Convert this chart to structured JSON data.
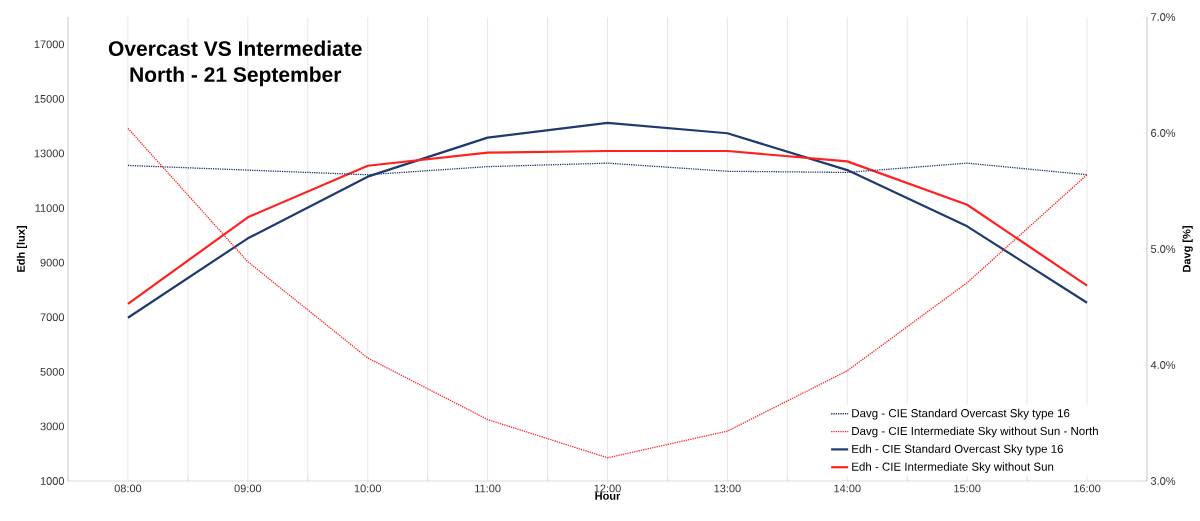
{
  "chart_data": {
    "type": "line",
    "title": "Overcast VS Intermediate",
    "subtitle": "North - 21 September",
    "xlabel": "Hour",
    "ylabel": "Edh [lux]",
    "y2label": "Davg [%]",
    "categories": [
      "08:00",
      "09:00",
      "10:00",
      "11:00",
      "12:00",
      "13:00",
      "14:00",
      "15:00",
      "16:00"
    ],
    "ylim": [
      1000,
      18000
    ],
    "yticks": [
      1000,
      3000,
      5000,
      7000,
      9000,
      11000,
      13000,
      15000,
      17000
    ],
    "y2lim": [
      3,
      7
    ],
    "y2ticks": [
      {
        "value": 3,
        "label": "3.0%"
      },
      {
        "value": 4,
        "label": "4.0%"
      },
      {
        "value": 5,
        "label": "5.0%"
      },
      {
        "value": 6,
        "label": "6.0%"
      },
      {
        "value": 7,
        "label": "7.0%"
      }
    ],
    "grid": "x",
    "legend": "bottom right",
    "marker": "none",
    "series": [
      {
        "name": "Davg - CIE Standard Overcast Sky type 16",
        "color": "#1f3a6e",
        "axis": "y2",
        "line_style": "dotted",
        "values": [
          5.72,
          5.68,
          5.64,
          5.71,
          5.74,
          5.67,
          5.66,
          5.74,
          5.64
        ]
      },
      {
        "name": "Davg - CIE Intermediate Sky without Sun - North",
        "color": "#ff2020",
        "axis": "y2",
        "line_style": "dotted",
        "values": [
          6.04,
          4.89,
          4.06,
          3.53,
          3.2,
          3.43,
          3.95,
          4.71,
          5.64
        ]
      },
      {
        "name": "Edh - CIE Standard Overcast Sky type 16",
        "color": "#1f3a6e",
        "axis": "y",
        "line_style": "solid",
        "values": [
          6980,
          9890,
          12150,
          13580,
          14120,
          13740,
          12390,
          10330,
          7530
        ]
      },
      {
        "name": "Edh - CIE Intermediate Sky without Sun",
        "color": "#ff2020",
        "axis": "y",
        "line_style": "solid",
        "values": [
          7490,
          10660,
          12550,
          13030,
          13090,
          13090,
          12710,
          11120,
          8160
        ]
      }
    ]
  }
}
